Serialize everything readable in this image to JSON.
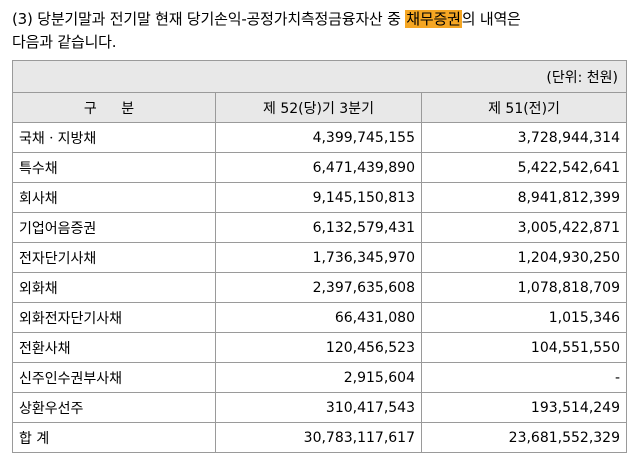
{
  "intro": {
    "line1_before": "(3) 당분기말과 전기말 현재 당기손익-공정가치측정금융자산 중 ",
    "highlight": "채무증권",
    "line1_after": "의 내역은",
    "line2": "다음과 같습니다."
  },
  "table": {
    "unit": "(단위: 천원)",
    "headers": [
      "구 분",
      "제 52(당)기 3분기",
      "제 51(전)기"
    ],
    "rows": [
      {
        "label": "국채ㆍ지방채",
        "current": "4,399,745,155",
        "prior": "3,728,944,314"
      },
      {
        "label": "특수채",
        "current": "6,471,439,890",
        "prior": "5,422,542,641"
      },
      {
        "label": "회사채",
        "current": "9,145,150,813",
        "prior": "8,941,812,399"
      },
      {
        "label": "기업어음증권",
        "current": "6,132,579,431",
        "prior": "3,005,422,871"
      },
      {
        "label": "전자단기사채",
        "current": "1,736,345,970",
        "prior": "1,204,930,250"
      },
      {
        "label": "외화채",
        "current": "2,397,635,608",
        "prior": "1,078,818,709"
      },
      {
        "label": "외화전자단기사채",
        "current": "66,431,080",
        "prior": "1,015,346"
      },
      {
        "label": "전환사채",
        "current": "120,456,523",
        "prior": "104,551,550"
      },
      {
        "label": "신주인수권부사채",
        "current": "2,915,604",
        "prior": "-"
      },
      {
        "label": "상환우선주",
        "current": "310,417,543",
        "prior": "193,514,249"
      },
      {
        "label": "합 계",
        "current": "30,783,117,617",
        "prior": "23,681,552,329"
      }
    ]
  }
}
